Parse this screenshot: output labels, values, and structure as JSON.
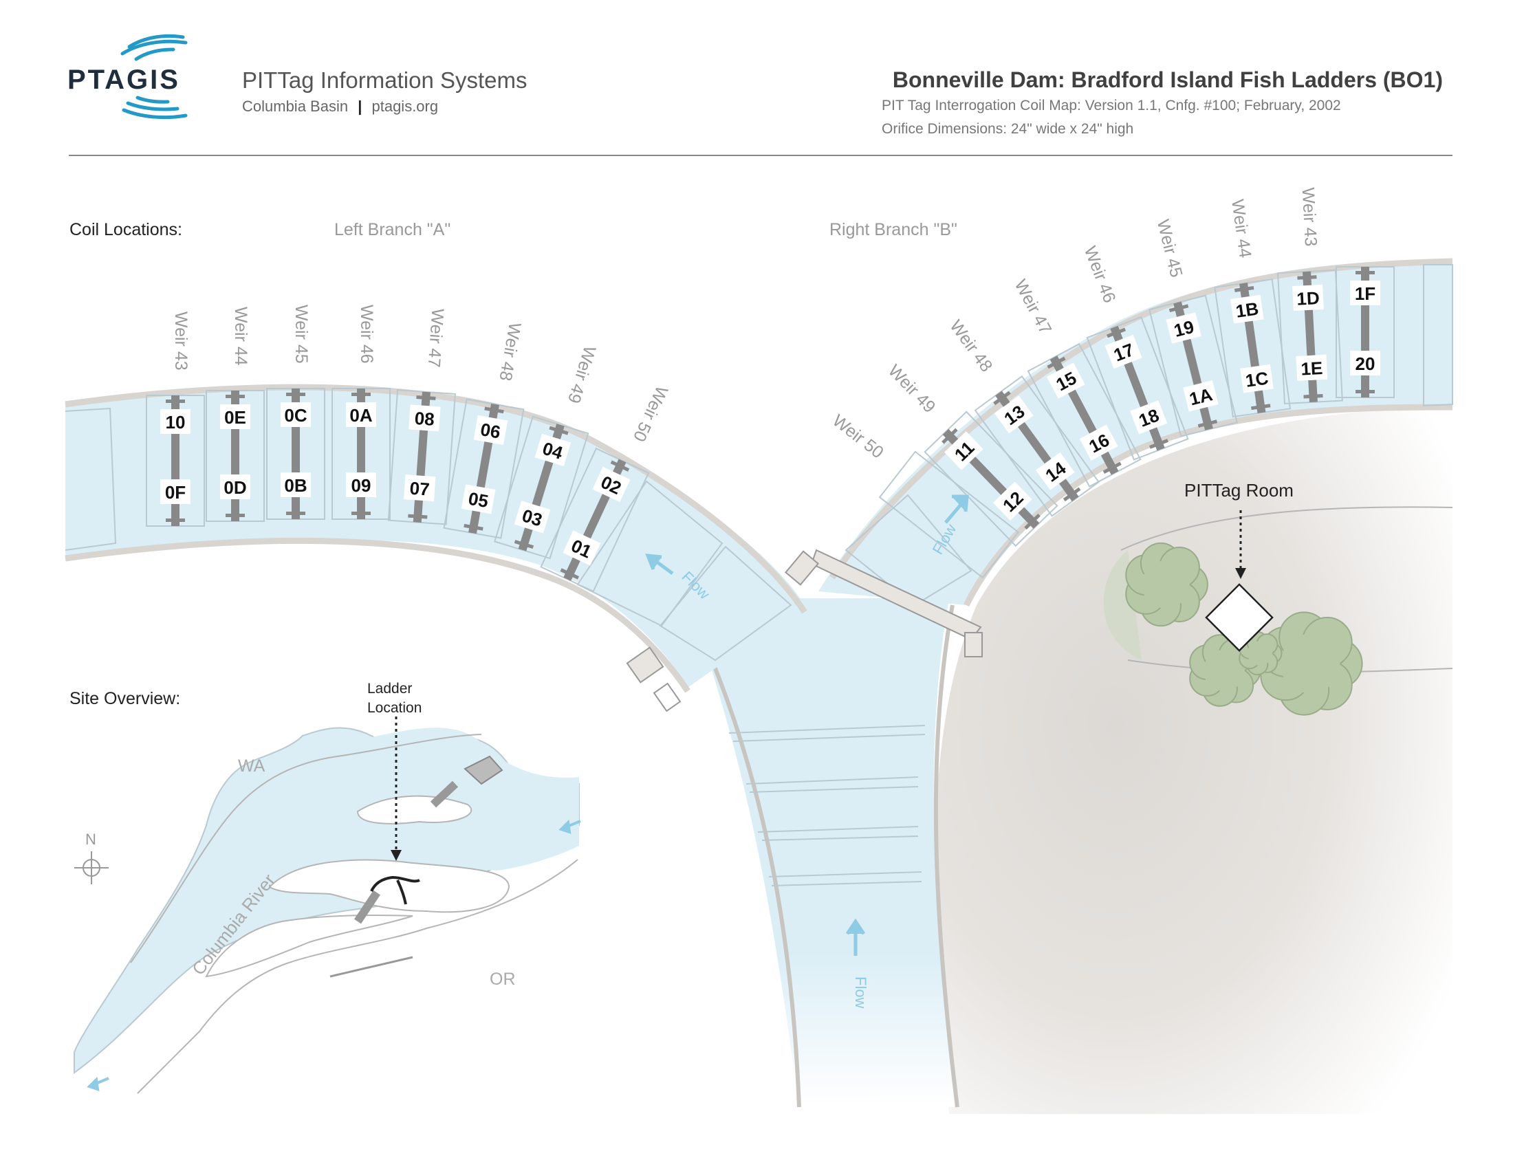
{
  "header": {
    "logo": "PTAGIS",
    "logo_icon": "signal-waves-icon",
    "org_name": "PITTag Information Systems",
    "org_sub_left": "Columbia Basin",
    "org_sub_right": "ptagis.org",
    "title": "Bonneville Dam: Bradford Island Fish Ladders (BO1)",
    "subtitle_1": "PIT Tag Interrogation Coil Map: Version 1.1, Cnfg. #100; February, 2002",
    "subtitle_2": "Orifice Dimensions: 24\" wide x 24\" high"
  },
  "labels": {
    "coil_locations": "Coil Locations:",
    "left_branch": "Left Branch \"A\"",
    "right_branch": "Right Branch \"B\"",
    "site_overview": "Site Overview:",
    "ladder_location": [
      "Ladder",
      "Location"
    ],
    "pittag_room": "PITTag Room",
    "flow": "Flow",
    "wa": "WA",
    "or": "OR",
    "north": "N",
    "river": "Columbia River"
  },
  "colors": {
    "water": "#dbeef6",
    "water_stroke": "#b9c9d1",
    "wall": "#d8d4cf",
    "trees": "#b7c8a6",
    "coil_bar": "#888888",
    "flow_arrow": "#8ecbe4"
  },
  "left_weirs": [
    {
      "weir": "Weir 43",
      "top": "10",
      "bottom": "0F"
    },
    {
      "weir": "Weir 44",
      "top": "0E",
      "bottom": "0D"
    },
    {
      "weir": "Weir 45",
      "top": "0C",
      "bottom": "0B"
    },
    {
      "weir": "Weir 46",
      "top": "0A",
      "bottom": "09"
    },
    {
      "weir": "Weir 47",
      "top": "08",
      "bottom": "07"
    },
    {
      "weir": "Weir 48",
      "top": "06",
      "bottom": "05"
    },
    {
      "weir": "Weir 49",
      "top": "04",
      "bottom": "03"
    },
    {
      "weir": "Weir 50",
      "top": "02",
      "bottom": "01"
    }
  ],
  "right_weirs": [
    {
      "weir": "Weir 50",
      "top": "",
      "bottom": ""
    },
    {
      "weir": "Weir 49",
      "top": "11",
      "bottom": "12"
    },
    {
      "weir": "Weir 48",
      "top": "13",
      "bottom": "14"
    },
    {
      "weir": "Weir 47",
      "top": "15",
      "bottom": "16"
    },
    {
      "weir": "Weir 46",
      "top": "17",
      "bottom": "18"
    },
    {
      "weir": "Weir 45",
      "top": "19",
      "bottom": "1A"
    },
    {
      "weir": "Weir 44",
      "top": "1B",
      "bottom": "1C"
    },
    {
      "weir": "Weir 43",
      "top": "1D",
      "bottom": "1E"
    },
    {
      "weir": "",
      "top": "1F",
      "bottom": "20"
    }
  ]
}
